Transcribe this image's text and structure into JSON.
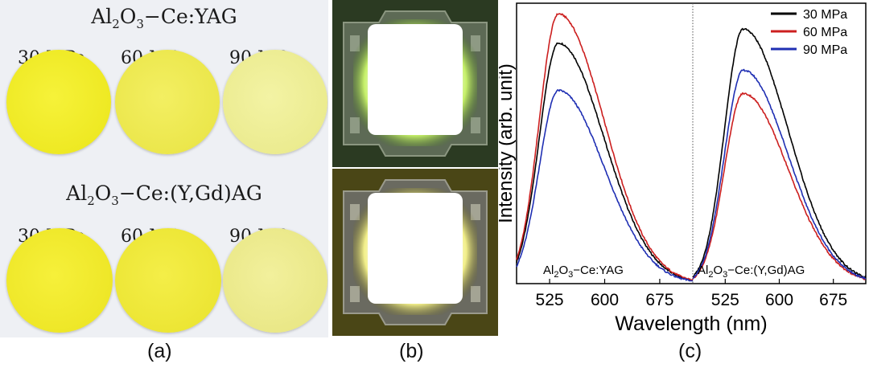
{
  "panel_a": {
    "title_top": {
      "pre": "Al",
      "sub1": "2",
      "mid": "O",
      "sub2": "3",
      "post": "−Ce:YAG"
    },
    "title_bottom": {
      "pre": "Al",
      "sub1": "2",
      "mid": "O",
      "sub2": "3",
      "post": "−Ce:(Y,Gd)AG"
    },
    "pressures": [
      "30 MPa",
      "60 MPa",
      "90 MPa"
    ],
    "caption": "(a)",
    "colors": {
      "disk_30": "#f1ec1e",
      "disk_60": "#eee948",
      "disk_90": "#eeee8e"
    }
  },
  "panel_b": {
    "caption": "(b)"
  },
  "panel_c": {
    "caption": "(c)"
  },
  "chart_data": {
    "type": "line",
    "ylabel": "Intensity (arb. unit)",
    "xlabel": "Wavelength (nm)",
    "xticks": [
      "525",
      "600",
      "675"
    ],
    "xlim": [
      480,
      720
    ],
    "ylim": [
      0,
      1
    ],
    "grid": false,
    "legend_position": "top-right",
    "legend": [
      "30 MPa",
      "60 MPa",
      "90 MPa"
    ],
    "series_colors": [
      "#000000",
      "#cc1f1f",
      "#1f2fb3"
    ],
    "subplots": [
      {
        "label": {
          "pre": "Al",
          "sub1": "2",
          "mid": "O",
          "sub2": "3",
          "post": "−Ce:YAG"
        },
        "series": [
          {
            "name": "30 MPa",
            "peak_nm": 537,
            "peak": 0.858
          },
          {
            "name": "60 MPa",
            "peak_nm": 537,
            "peak": 0.962
          },
          {
            "name": "90 MPa",
            "peak_nm": 537,
            "peak": 0.689
          }
        ]
      },
      {
        "label": {
          "pre": "Al",
          "sub1": "2",
          "mid": "O",
          "sub2": "3",
          "post": "−Ce:(Y,Gd)AG"
        },
        "series": [
          {
            "name": "30 MPa",
            "peak_nm": 550,
            "peak": 0.908
          },
          {
            "name": "60 MPa",
            "peak_nm": 550,
            "peak": 0.678
          },
          {
            "name": "90 MPa",
            "peak_nm": 550,
            "peak": 0.761
          }
        ]
      }
    ]
  }
}
